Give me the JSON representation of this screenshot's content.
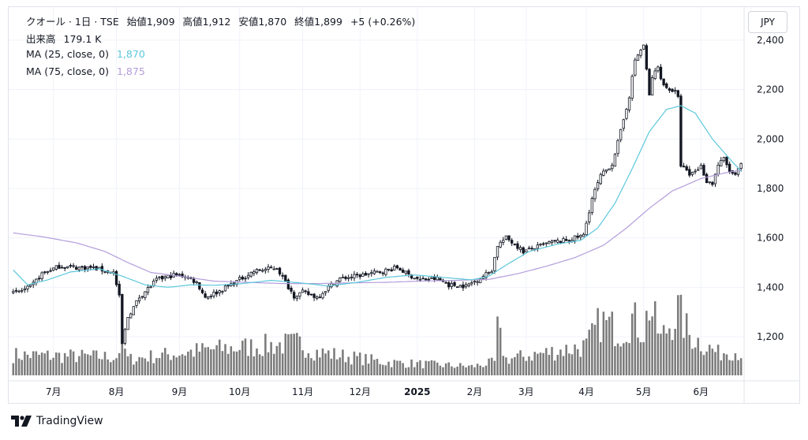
{
  "header": {
    "symbol_line": "クオール · 1日 · TSE",
    "ohlc": [
      {
        "label": "始値",
        "value": "1,909"
      },
      {
        "label": "高値",
        "value": "1,912"
      },
      {
        "label": "安値",
        "value": "1,870"
      },
      {
        "label": "終値",
        "value": "1,899"
      }
    ],
    "change": "+5 (+0.26%)",
    "volume_label": "出来高",
    "volume_value": "179.1 K",
    "ma25_label": "MA (25, close, 0)",
    "ma25_value": "1,870",
    "ma75_label": "MA (75, close, 0)",
    "ma75_value": "1,875"
  },
  "currency_button": "JPY",
  "brand": "TradingView",
  "colors": {
    "ma25": "#5cc8dc",
    "ma75": "#b39ddb",
    "candle": "#131722",
    "volume": "#7b7b7b",
    "grid": "#f0f3fa",
    "axis_text": "#131722"
  },
  "chart_data": {
    "type": "candlestick",
    "y_ticks": [
      "2,400",
      "2,200",
      "2,000",
      "1,800",
      "1,600",
      "1,400",
      "1,200"
    ],
    "y_tick_values": [
      2400,
      2200,
      2000,
      1800,
      1600,
      1400,
      1200
    ],
    "ylim": [
      1100,
      2420
    ],
    "x_ticks": [
      "7月",
      "8月",
      "9月",
      "10月",
      "11月",
      "12月",
      "2025",
      "2月",
      "3月",
      "4月",
      "5月",
      "6月"
    ],
    "x_tick_index": [
      14,
      36,
      58,
      79,
      101,
      121,
      141,
      161,
      179,
      200,
      220,
      240
    ],
    "sessions": 255,
    "keypoints": [
      [
        0,
        1375
      ],
      [
        6,
        1400
      ],
      [
        10,
        1455
      ],
      [
        16,
        1485
      ],
      [
        22,
        1480
      ],
      [
        27,
        1480
      ],
      [
        35,
        1460
      ],
      [
        37,
        1360
      ],
      [
        38,
        1170
      ],
      [
        40,
        1280
      ],
      [
        44,
        1360
      ],
      [
        50,
        1430
      ],
      [
        56,
        1450
      ],
      [
        60,
        1445
      ],
      [
        64,
        1420
      ],
      [
        67,
        1360
      ],
      [
        72,
        1385
      ],
      [
        78,
        1425
      ],
      [
        84,
        1465
      ],
      [
        92,
        1480
      ],
      [
        95,
        1420
      ],
      [
        98,
        1365
      ],
      [
        101,
        1380
      ],
      [
        106,
        1360
      ],
      [
        110,
        1400
      ],
      [
        114,
        1435
      ],
      [
        122,
        1450
      ],
      [
        129,
        1465
      ],
      [
        134,
        1480
      ],
      [
        138,
        1450
      ],
      [
        142,
        1430
      ],
      [
        148,
        1435
      ],
      [
        152,
        1410
      ],
      [
        158,
        1405
      ],
      [
        164,
        1445
      ],
      [
        167,
        1470
      ],
      [
        169,
        1570
      ],
      [
        172,
        1600
      ],
      [
        175,
        1575
      ],
      [
        178,
        1545
      ],
      [
        182,
        1560
      ],
      [
        187,
        1580
      ],
      [
        193,
        1590
      ],
      [
        199,
        1610
      ],
      [
        202,
        1760
      ],
      [
        205,
        1850
      ],
      [
        209,
        1900
      ],
      [
        212,
        2030
      ],
      [
        215,
        2175
      ],
      [
        217,
        2320
      ],
      [
        220,
        2380
      ],
      [
        222,
        2175
      ],
      [
        223,
        2250
      ],
      [
        225,
        2290
      ],
      [
        227,
        2215
      ],
      [
        231,
        2190
      ],
      [
        232,
        2165
      ],
      [
        233,
        1895
      ],
      [
        236,
        1855
      ],
      [
        240,
        1890
      ],
      [
        242,
        1830
      ],
      [
        244,
        1820
      ],
      [
        246,
        1895
      ],
      [
        248,
        1920
      ],
      [
        250,
        1870
      ],
      [
        252,
        1850
      ],
      [
        254,
        1899
      ]
    ],
    "volume_keypoints": [
      [
        0,
        28
      ],
      [
        36,
        25
      ],
      [
        38,
        48
      ],
      [
        40,
        22
      ],
      [
        68,
        35
      ],
      [
        100,
        44
      ],
      [
        106,
        32
      ],
      [
        130,
        18
      ],
      [
        160,
        12
      ],
      [
        168,
        18
      ],
      [
        169,
        62
      ],
      [
        172,
        22
      ],
      [
        200,
        40
      ],
      [
        205,
        74
      ],
      [
        212,
        60
      ],
      [
        216,
        78
      ],
      [
        220,
        60
      ],
      [
        222,
        95
      ],
      [
        226,
        50
      ],
      [
        232,
        88
      ],
      [
        236,
        55
      ],
      [
        246,
        30
      ],
      [
        250,
        35
      ],
      [
        254,
        30
      ]
    ],
    "ma25_keypoints": [
      [
        0,
        1470
      ],
      [
        5,
        1410
      ],
      [
        12,
        1430
      ],
      [
        20,
        1462
      ],
      [
        30,
        1475
      ],
      [
        38,
        1445
      ],
      [
        46,
        1410
      ],
      [
        54,
        1400
      ],
      [
        62,
        1410
      ],
      [
        70,
        1408
      ],
      [
        80,
        1415
      ],
      [
        90,
        1428
      ],
      [
        100,
        1418
      ],
      [
        110,
        1405
      ],
      [
        120,
        1420
      ],
      [
        130,
        1440
      ],
      [
        140,
        1450
      ],
      [
        150,
        1440
      ],
      [
        160,
        1430
      ],
      [
        166,
        1445
      ],
      [
        172,
        1490
      ],
      [
        180,
        1545
      ],
      [
        190,
        1575
      ],
      [
        198,
        1590
      ],
      [
        204,
        1640
      ],
      [
        210,
        1740
      ],
      [
        216,
        1880
      ],
      [
        222,
        2030
      ],
      [
        228,
        2120
      ],
      [
        233,
        2135
      ],
      [
        238,
        2105
      ],
      [
        244,
        2000
      ],
      [
        250,
        1920
      ],
      [
        254,
        1870
      ]
    ],
    "ma75_keypoints": [
      [
        0,
        1620
      ],
      [
        10,
        1605
      ],
      [
        22,
        1580
      ],
      [
        32,
        1545
      ],
      [
        40,
        1500
      ],
      [
        48,
        1460
      ],
      [
        58,
        1445
      ],
      [
        70,
        1425
      ],
      [
        82,
        1420
      ],
      [
        94,
        1415
      ],
      [
        106,
        1415
      ],
      [
        118,
        1418
      ],
      [
        130,
        1420
      ],
      [
        142,
        1425
      ],
      [
        154,
        1428
      ],
      [
        166,
        1432
      ],
      [
        176,
        1455
      ],
      [
        186,
        1485
      ],
      [
        196,
        1520
      ],
      [
        206,
        1570
      ],
      [
        214,
        1640
      ],
      [
        222,
        1720
      ],
      [
        230,
        1790
      ],
      [
        240,
        1840
      ],
      [
        248,
        1862
      ],
      [
        254,
        1875
      ]
    ]
  }
}
